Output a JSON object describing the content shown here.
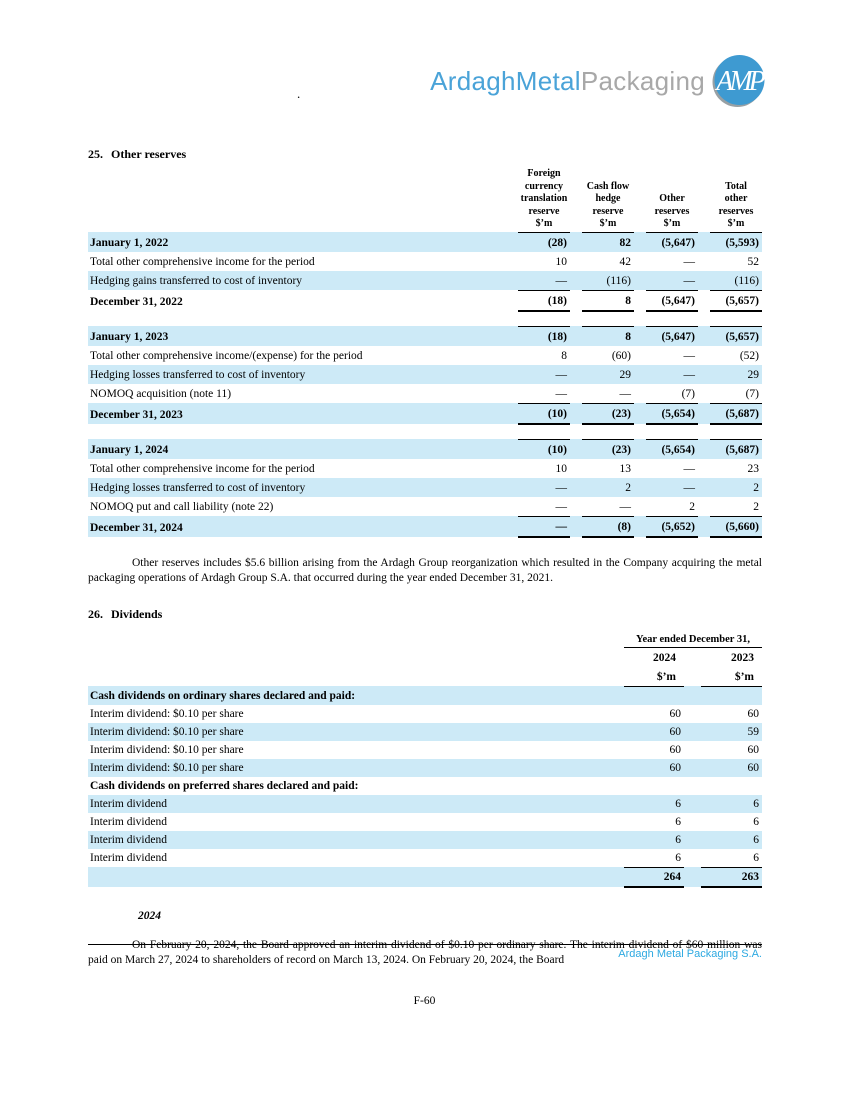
{
  "page": {
    "stray_mark": ".",
    "footer_company": "Ardagh Metal Packaging S.A.",
    "page_number": "F-60",
    "colors": {
      "row_highlight": "#cdeaf7",
      "footer_blue": "#2da9e1"
    }
  },
  "logo": {
    "brand_primary": "ArdaghMetal",
    "brand_secondary": "Packaging",
    "badge_text": "AMP",
    "colors": {
      "brand_blue": "#4aa3d8",
      "brand_gray": "#a8a8a8",
      "badge_fill": "#3e9ad1",
      "badge_ring": "#98a0a4"
    }
  },
  "section_25": {
    "number": "25.",
    "title": "Other reserves",
    "table": {
      "column_headers": [
        {
          "lines": [
            "Foreign",
            "currency",
            "translation",
            "reserve"
          ],
          "unit": "$’m"
        },
        {
          "lines": [
            "Cash flow",
            "hedge",
            "reserve"
          ],
          "unit": "$’m"
        },
        {
          "lines": [
            "Other",
            "reserves"
          ],
          "unit": "$’m"
        },
        {
          "lines": [
            "Total",
            "other",
            "reserves"
          ],
          "unit": "$’m"
        }
      ],
      "rows": [
        {
          "label": "January 1, 2022",
          "values": [
            "(28)",
            "82",
            "(5,647)",
            "(5,593)"
          ],
          "bold": true,
          "shaded": true,
          "rule": "top"
        },
        {
          "label": "Total other comprehensive income for the period",
          "values": [
            "10",
            "42",
            "—",
            "52"
          ]
        },
        {
          "label": "Hedging gains transferred to cost of inventory",
          "values": [
            "—",
            "(116)",
            "—",
            "(116)"
          ],
          "shaded": true,
          "rule": "bottom-thin"
        },
        {
          "label": "December 31, 2022",
          "values": [
            "(18)",
            "8",
            "(5,647)",
            "(5,657)"
          ],
          "bold": true,
          "rule": "bottom-thick"
        },
        {
          "spacer": true
        },
        {
          "label": "January 1, 2023",
          "values": [
            "(18)",
            "8",
            "(5,647)",
            "(5,657)"
          ],
          "bold": true,
          "shaded": true,
          "rule": "top"
        },
        {
          "label": "Total other comprehensive income/(expense) for the period",
          "values": [
            "8",
            "(60)",
            "—",
            "(52)"
          ]
        },
        {
          "label": "Hedging losses transferred to cost of inventory",
          "values": [
            "—",
            "29",
            "—",
            "29"
          ],
          "shaded": true
        },
        {
          "label": "NOMOQ acquisition (note 11)",
          "values": [
            "—",
            "—",
            "(7)",
            "(7)"
          ],
          "rule": "bottom-thin"
        },
        {
          "label": "December 31, 2023",
          "values": [
            "(10)",
            "(23)",
            "(5,654)",
            "(5,687)"
          ],
          "bold": true,
          "shaded": true,
          "rule": "bottom-thick"
        },
        {
          "spacer": true
        },
        {
          "label": "January 1, 2024",
          "values": [
            "(10)",
            "(23)",
            "(5,654)",
            "(5,687)"
          ],
          "bold": true,
          "shaded": true,
          "rule": "top"
        },
        {
          "label": "Total other comprehensive income for the period",
          "values": [
            "10",
            "13",
            "—",
            "23"
          ]
        },
        {
          "label": "Hedging losses transferred to cost of inventory",
          "values": [
            "—",
            "2",
            "—",
            "2"
          ],
          "shaded": true
        },
        {
          "label": "NOMOQ put and call liability (note 22)",
          "values": [
            "—",
            "—",
            "2",
            "2"
          ],
          "rule": "bottom-thin"
        },
        {
          "label": "December 31, 2024",
          "values": [
            "—",
            "(8)",
            "(5,652)",
            "(5,660)"
          ],
          "bold": true,
          "shaded": true,
          "rule": "bottom-thick"
        }
      ]
    },
    "paragraph": "Other reserves includes $5.6 billion arising from the Ardagh Group reorganization which resulted in the Company acquiring the metal packaging operations of Ardagh Group S.A. that occurred during the year ended December 31, 2021."
  },
  "section_26": {
    "number": "26.",
    "title": "Dividends",
    "table": {
      "period_header": "Year ended December 31,",
      "years": [
        "2024",
        "2023"
      ],
      "unit": "$’m",
      "rows": [
        {
          "label": "Cash dividends on ordinary shares declared and paid:",
          "values": [
            "",
            ""
          ],
          "bold": true,
          "shaded": true
        },
        {
          "label": "Interim dividend: $0.10 per share",
          "values": [
            "60",
            "60"
          ]
        },
        {
          "label": "Interim dividend: $0.10 per share",
          "values": [
            "60",
            "59"
          ],
          "shaded": true
        },
        {
          "label": "Interim dividend: $0.10 per share",
          "values": [
            "60",
            "60"
          ]
        },
        {
          "label": "Interim dividend: $0.10 per share",
          "values": [
            "60",
            "60"
          ],
          "shaded": true
        },
        {
          "label": "Cash dividends on preferred shares declared and paid:",
          "values": [
            "",
            ""
          ],
          "bold": true
        },
        {
          "label": "Interim dividend",
          "values": [
            "6",
            "6"
          ],
          "shaded": true
        },
        {
          "label": "Interim dividend",
          "values": [
            "6",
            "6"
          ]
        },
        {
          "label": "Interim dividend",
          "values": [
            "6",
            "6"
          ],
          "shaded": true
        },
        {
          "label": "Interim dividend",
          "values": [
            "6",
            "6"
          ],
          "rule": "bottom-thin"
        },
        {
          "label": "",
          "values": [
            "264",
            "263"
          ],
          "bold": true,
          "shaded": true,
          "rule": "bottom-thick"
        }
      ]
    },
    "year_subheading": "2024",
    "paragraph": "On February 20, 2024, the Board approved an interim dividend of $0.10 per ordinary share. The interim dividend of $60 million was paid on March 27, 2024 to shareholders of record on March 13, 2024. On February 20, 2024, the Board"
  }
}
